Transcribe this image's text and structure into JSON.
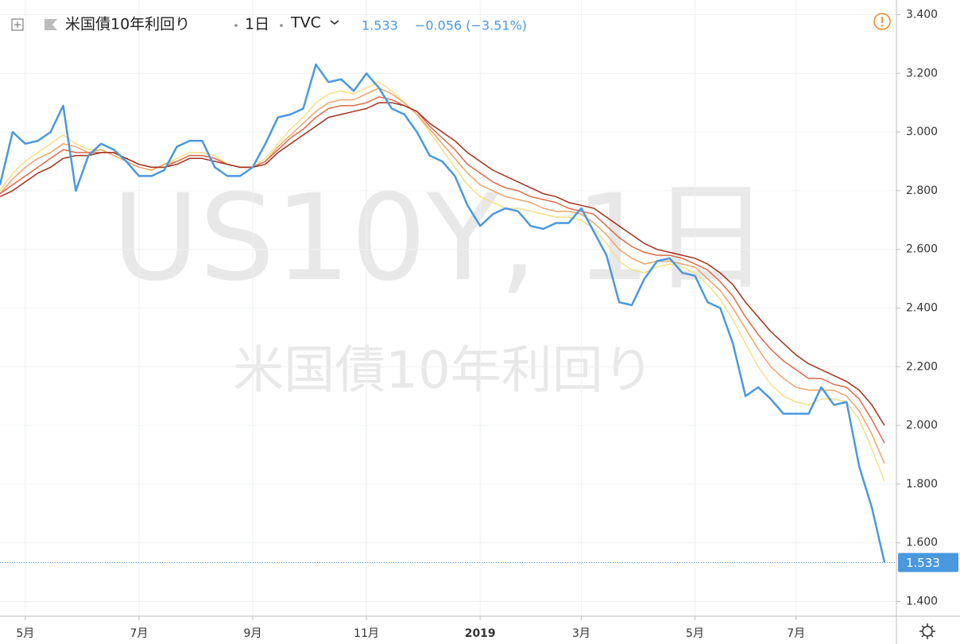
{
  "header": {
    "symbol_name": "米国債10年利回り",
    "interval": "1日",
    "exchange": "TVC",
    "change": "−0.056 (−3.51%)"
  },
  "watermark": {
    "symbol": "US10Y, 1日",
    "description": "米国債10年利回り"
  },
  "chart_data": {
    "type": "line",
    "categories": [
      null,
      null,
      "5月",
      null,
      null,
      null,
      null,
      null,
      null,
      null,
      null,
      "7月",
      null,
      null,
      null,
      null,
      null,
      null,
      null,
      null,
      "9月",
      null,
      null,
      null,
      null,
      null,
      null,
      null,
      null,
      "11月",
      null,
      null,
      null,
      null,
      null,
      null,
      null,
      null,
      "2019",
      null,
      null,
      null,
      null,
      null,
      null,
      null,
      "3月",
      null,
      null,
      null,
      null,
      null,
      null,
      null,
      null,
      "5月",
      null,
      null,
      null,
      null,
      null,
      null,
      null,
      "7月",
      null,
      null,
      null,
      null,
      null,
      null,
      null
    ],
    "series": [
      {
        "color": "#f5df86",
        "values": [
          2.8,
          2.86,
          2.9,
          2.93,
          2.96,
          2.99,
          2.96,
          2.94,
          2.94,
          2.92,
          2.9,
          2.88,
          2.87,
          2.89,
          2.91,
          2.93,
          2.93,
          2.92,
          2.89,
          2.88,
          2.88,
          2.91,
          2.96,
          3.01,
          3.05,
          3.1,
          3.13,
          3.14,
          3.13,
          3.15,
          3.17,
          3.14,
          3.1,
          3.06,
          3.0,
          2.94,
          2.88,
          2.82,
          2.78,
          2.76,
          2.74,
          2.74,
          2.73,
          2.72,
          2.71,
          2.71,
          2.7,
          2.67,
          2.62,
          2.56,
          2.53,
          2.52,
          2.54,
          2.55,
          2.54,
          2.52,
          2.48,
          2.43,
          2.36,
          2.28,
          2.2,
          2.14,
          2.1,
          2.08,
          2.07,
          2.09,
          2.09,
          2.08,
          2.02,
          1.92,
          1.81
        ]
      },
      {
        "color": "#f0a468",
        "values": [
          2.79,
          2.84,
          2.88,
          2.91,
          2.93,
          2.96,
          2.95,
          2.93,
          2.94,
          2.92,
          2.9,
          2.88,
          2.87,
          2.89,
          2.9,
          2.92,
          2.92,
          2.91,
          2.89,
          2.88,
          2.88,
          2.9,
          2.95,
          2.99,
          3.03,
          3.07,
          3.1,
          3.11,
          3.11,
          3.13,
          3.15,
          3.13,
          3.1,
          3.06,
          3.01,
          2.96,
          2.91,
          2.86,
          2.82,
          2.8,
          2.78,
          2.77,
          2.76,
          2.74,
          2.73,
          2.73,
          2.72,
          2.69,
          2.65,
          2.6,
          2.57,
          2.55,
          2.56,
          2.56,
          2.55,
          2.54,
          2.5,
          2.46,
          2.4,
          2.33,
          2.26,
          2.2,
          2.16,
          2.13,
          2.12,
          2.12,
          2.12,
          2.1,
          2.05,
          1.97,
          1.87
        ]
      },
      {
        "color": "#de6a4c",
        "values": [
          2.79,
          2.82,
          2.85,
          2.88,
          2.91,
          2.94,
          2.93,
          2.93,
          2.93,
          2.93,
          2.91,
          2.89,
          2.88,
          2.88,
          2.9,
          2.92,
          2.92,
          2.91,
          2.89,
          2.88,
          2.88,
          2.9,
          2.94,
          2.98,
          3.01,
          3.05,
          3.08,
          3.09,
          3.09,
          3.1,
          3.12,
          3.11,
          3.09,
          3.07,
          3.02,
          2.98,
          2.94,
          2.89,
          2.86,
          2.83,
          2.81,
          2.8,
          2.78,
          2.77,
          2.76,
          2.74,
          2.73,
          2.72,
          2.68,
          2.64,
          2.61,
          2.59,
          2.58,
          2.58,
          2.57,
          2.55,
          2.53,
          2.49,
          2.44,
          2.37,
          2.31,
          2.26,
          2.22,
          2.19,
          2.16,
          2.16,
          2.14,
          2.13,
          2.09,
          2.02,
          1.94
        ]
      },
      {
        "color": "#a3301c",
        "values": [
          2.78,
          2.8,
          2.83,
          2.86,
          2.88,
          2.91,
          2.92,
          2.92,
          2.93,
          2.93,
          2.91,
          2.89,
          2.88,
          2.88,
          2.89,
          2.91,
          2.91,
          2.9,
          2.89,
          2.88,
          2.88,
          2.89,
          2.93,
          2.96,
          2.99,
          3.02,
          3.05,
          3.06,
          3.07,
          3.08,
          3.1,
          3.1,
          3.09,
          3.07,
          3.03,
          3.0,
          2.97,
          2.93,
          2.9,
          2.87,
          2.85,
          2.83,
          2.81,
          2.79,
          2.78,
          2.76,
          2.75,
          2.74,
          2.71,
          2.68,
          2.65,
          2.62,
          2.6,
          2.59,
          2.58,
          2.57,
          2.55,
          2.52,
          2.48,
          2.42,
          2.37,
          2.32,
          2.28,
          2.24,
          2.21,
          2.19,
          2.17,
          2.15,
          2.12,
          2.07,
          2.0
        ]
      },
      {
        "color": "#4a98e0",
        "values": [
          2.82,
          3.0,
          2.96,
          2.97,
          3.0,
          3.09,
          2.8,
          2.92,
          2.96,
          2.94,
          2.9,
          2.85,
          2.85,
          2.87,
          2.95,
          2.97,
          2.97,
          2.88,
          2.85,
          2.85,
          2.88,
          2.96,
          3.05,
          3.06,
          3.08,
          3.23,
          3.17,
          3.18,
          3.14,
          3.2,
          3.15,
          3.08,
          3.06,
          3.0,
          2.92,
          2.9,
          2.85,
          2.75,
          2.68,
          2.72,
          2.74,
          2.73,
          2.68,
          2.67,
          2.69,
          2.69,
          2.74,
          2.66,
          2.58,
          2.42,
          2.41,
          2.5,
          2.56,
          2.57,
          2.52,
          2.51,
          2.42,
          2.4,
          2.28,
          2.1,
          2.13,
          2.09,
          2.04,
          2.04,
          2.04,
          2.13,
          2.07,
          2.08,
          1.86,
          1.72,
          1.533
        ]
      }
    ],
    "ylim": [
      1.35,
      3.45
    ],
    "yticks": [
      {
        "value": 1.4,
        "label": "1.400"
      },
      {
        "value": 1.6,
        "label": "1.600"
      },
      {
        "value": 1.8,
        "label": "1.800"
      },
      {
        "value": 2.0,
        "label": "2.000"
      },
      {
        "value": 2.2,
        "label": "2.200"
      },
      {
        "value": 2.4,
        "label": "2.400"
      },
      {
        "value": 2.6,
        "label": "2.600"
      },
      {
        "value": 2.8,
        "label": "2.800"
      },
      {
        "value": 3.0,
        "label": "3.000"
      },
      {
        "value": 3.2,
        "label": "3.200"
      },
      {
        "value": 3.4,
        "label": "3.400"
      }
    ],
    "grid": true
  }
}
